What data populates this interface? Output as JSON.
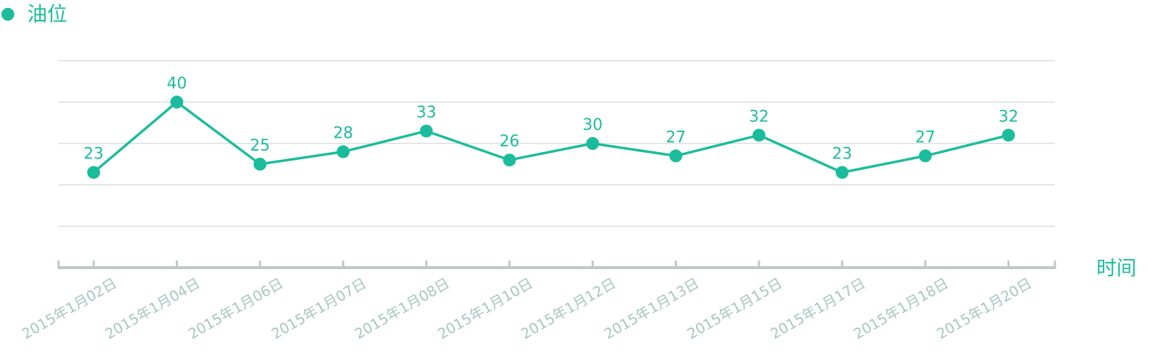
{
  "legend": {
    "label": "油位",
    "color": "#1bbc9b"
  },
  "colors": {
    "series": "#1bbc9b",
    "grid": "#d9dedd",
    "axis": "#bcc9c6",
    "tick_text": "#a8c6bf",
    "axis_name": "#1bbc9b"
  },
  "chart_data": {
    "type": "line",
    "xlabel": "时间",
    "ylabel": "",
    "ylim": [
      0,
      50
    ],
    "grid": true,
    "legend_position": "top-left",
    "categories": [
      "2015年1月02日",
      "2015年1月04日",
      "2015年1月06日",
      "2015年1月07日",
      "2015年1月08日",
      "2015年1月10日",
      "2015年1月12日",
      "2015年1月13日",
      "2015年1月15日",
      "2015年1月17日",
      "2015年1月18日",
      "2015年1月20日"
    ],
    "series": [
      {
        "name": "油位",
        "values": [
          23,
          40,
          25,
          28,
          33,
          26,
          30,
          27,
          32,
          23,
          27,
          32
        ]
      }
    ]
  }
}
